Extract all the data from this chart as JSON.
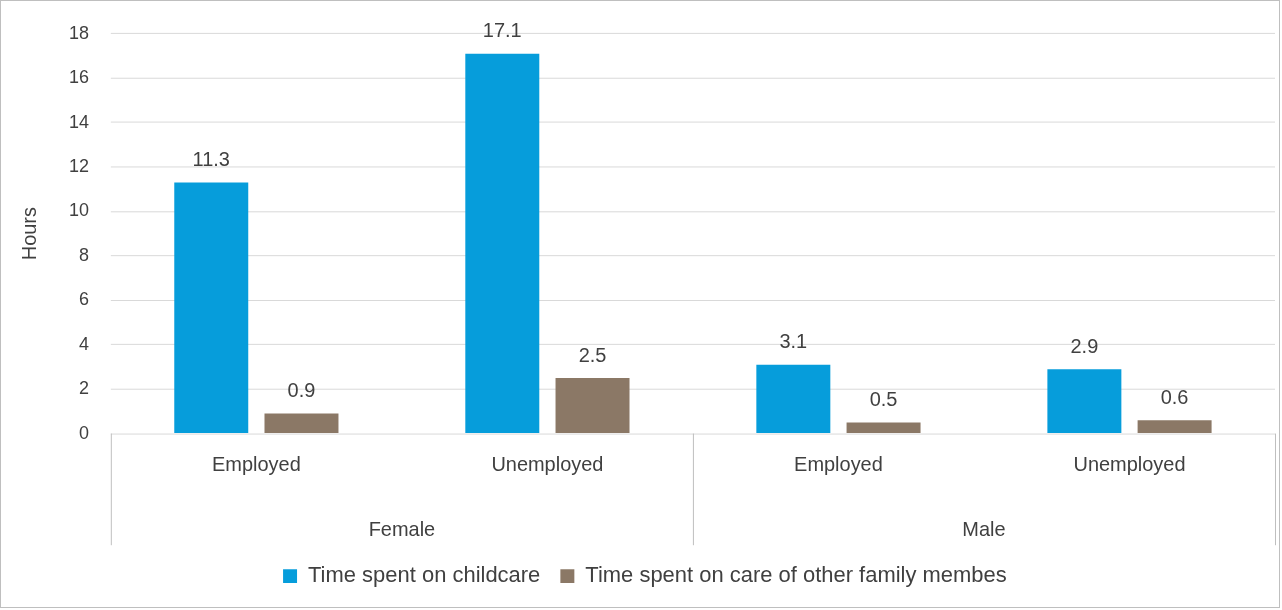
{
  "chart_data": {
    "type": "bar",
    "ylabel": "Hours",
    "categories": [
      "Employed",
      "Unemployed",
      "Employed",
      "Unemployed"
    ],
    "annotations": [
      "Female",
      "Male"
    ],
    "series": [
      {
        "name": "Time spent on childcare",
        "color": "#069ddb",
        "values": [
          11.3,
          17.1,
          3.1,
          2.9
        ]
      },
      {
        "name": "Time spent on care of other family membes",
        "color": "#8b7866",
        "values": [
          0.9,
          2.5,
          0.5,
          0.6
        ]
      }
    ],
    "ylim": [
      0,
      18
    ],
    "yticks": [
      0,
      2,
      4,
      6,
      8,
      10,
      12,
      14,
      16,
      18
    ],
    "grid": "y",
    "legend": "bottom",
    "data_labels": true
  }
}
